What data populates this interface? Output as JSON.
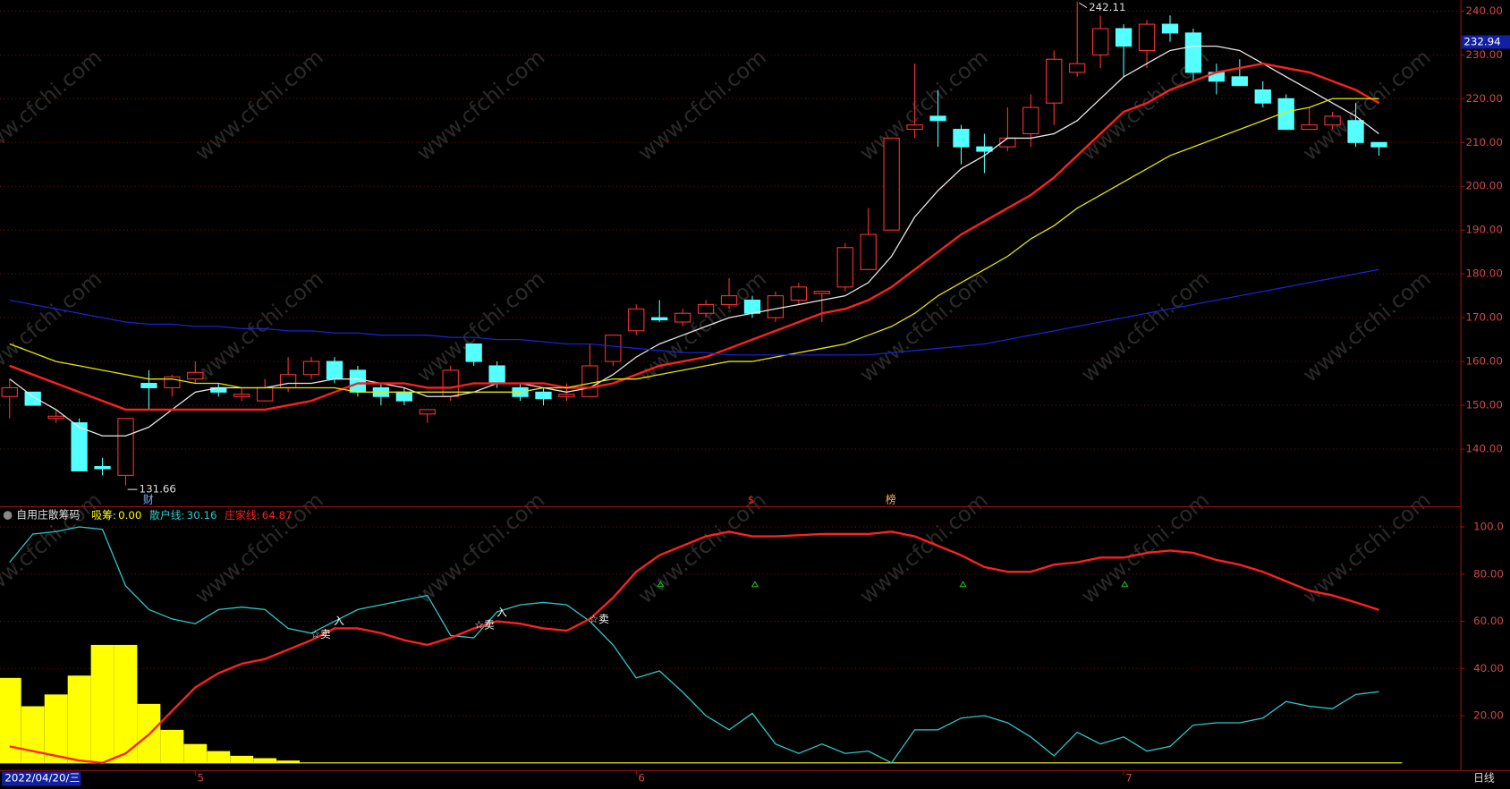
{
  "watermark": "www.cfchi.com",
  "chart_data": [
    {
      "type": "candlestick",
      "open": [
        152,
        153,
        147,
        146,
        136,
        134,
        155,
        154,
        156,
        154,
        152,
        151,
        154,
        157,
        160,
        158,
        154,
        153,
        148,
        152,
        164,
        159,
        154,
        153,
        152,
        152,
        160,
        167,
        170,
        169,
        171,
        173,
        174,
        170,
        174,
        175.5,
        177,
        181,
        190,
        213,
        216,
        213,
        209,
        209,
        212,
        219,
        226,
        230,
        236,
        231,
        237,
        235,
        226,
        225,
        222,
        220,
        213,
        214,
        215,
        210
      ],
      "high": [
        156,
        153,
        149,
        147,
        138,
        147,
        158,
        157,
        160,
        155,
        154,
        156,
        161,
        161,
        161,
        159,
        155,
        154,
        149,
        159,
        164,
        160,
        155,
        154,
        155,
        164,
        166,
        173,
        174,
        172,
        174,
        179,
        175,
        176,
        178,
        176,
        187,
        195,
        211,
        228,
        222,
        214,
        212,
        218,
        221,
        231,
        242.11,
        239,
        237,
        238,
        239,
        236,
        228,
        229,
        224,
        221,
        218,
        217,
        219,
        210
      ],
      "low": [
        147,
        150,
        146,
        135,
        134,
        131.66,
        149,
        152,
        155,
        152,
        151,
        151,
        153,
        156,
        155,
        152,
        150,
        150,
        146,
        151,
        159,
        154,
        151,
        150,
        151,
        152,
        159,
        166,
        169,
        168,
        170,
        172,
        170,
        169,
        173,
        169,
        176,
        181,
        190,
        211,
        209,
        205,
        203,
        208,
        209,
        214,
        225,
        227,
        225,
        227,
        233,
        224,
        221,
        223,
        218,
        213,
        213,
        213,
        209,
        207
      ],
      "close": [
        154,
        150,
        147.5,
        135,
        135.5,
        147,
        154,
        156.5,
        157.5,
        153,
        152.5,
        154,
        157,
        160,
        156,
        153,
        152,
        151,
        149,
        158,
        160,
        155,
        152,
        151.5,
        152.5,
        159,
        166,
        172,
        169.5,
        171,
        173,
        175,
        171,
        175,
        177,
        176,
        186,
        189,
        211,
        214,
        215,
        209,
        208,
        211,
        218,
        229,
        228,
        236,
        232,
        237,
        235,
        226,
        224,
        223,
        219,
        213,
        214,
        216,
        210,
        209
      ],
      "up_color": "#ff3232",
      "down_color": "#54ffff",
      "series": [
        {
          "color": "#e8e8e8",
          "values": [
            156,
            152,
            149,
            145,
            143,
            143,
            145,
            149,
            153,
            154,
            154,
            154,
            155,
            155,
            156,
            156,
            155,
            154,
            152,
            152,
            153,
            155,
            155,
            154,
            153,
            154,
            157,
            161,
            164,
            166,
            168,
            170,
            171,
            172,
            173,
            174,
            175,
            178,
            184,
            193,
            199,
            204,
            207,
            211,
            211,
            212,
            215,
            220,
            225,
            228,
            231,
            232,
            232,
            231,
            228,
            225,
            222,
            219,
            216,
            212
          ]
        },
        {
          "color": "#ff2020",
          "values": [
            159,
            157,
            155,
            153,
            151,
            149,
            149,
            149,
            149,
            149,
            149,
            149,
            150,
            151,
            153,
            155,
            155,
            155,
            154,
            154,
            155,
            155,
            155,
            155,
            154,
            154,
            155,
            157,
            159,
            160,
            161,
            163,
            165,
            167,
            169,
            171,
            172,
            174,
            177,
            181,
            185,
            189,
            192,
            195,
            198,
            202,
            207,
            212,
            217,
            219,
            222,
            224,
            226,
            227,
            228,
            227,
            226,
            224,
            222,
            219
          ]
        },
        {
          "color": "#e6e600",
          "values": [
            164,
            162,
            160,
            159,
            158,
            157,
            156,
            156,
            155,
            155,
            154,
            154,
            154,
            154,
            154,
            153,
            153,
            153,
            153,
            153,
            153,
            153,
            153,
            154,
            154,
            155,
            156,
            156,
            157,
            158,
            159,
            160,
            160,
            161,
            162,
            163,
            164,
            166,
            168,
            171,
            175,
            178,
            181,
            184,
            188,
            191,
            195,
            198,
            201,
            204,
            207,
            209,
            211,
            213,
            215,
            217,
            218,
            220,
            220,
            220
          ]
        },
        {
          "color": "#1a22d0",
          "values": [
            174,
            173,
            172,
            171,
            170,
            169,
            168.5,
            168.5,
            168,
            168,
            167.5,
            167.5,
            167,
            167,
            166.5,
            166.5,
            166,
            166,
            166,
            165.5,
            165.5,
            165,
            165,
            164.5,
            164,
            164,
            163.5,
            163,
            162.5,
            162,
            162,
            161.5,
            161.5,
            161.5,
            161.5,
            161.5,
            161.5,
            161.5,
            162,
            162.5,
            163,
            163.5,
            164,
            165,
            166,
            167,
            168,
            169,
            170,
            171,
            172,
            173,
            174,
            175,
            176,
            177,
            178,
            179,
            180,
            181
          ]
        }
      ],
      "ylim": [
        127.5,
        242.5
      ],
      "yticks": [
        {
          "value": 140,
          "label": "140.00"
        },
        {
          "value": 150,
          "label": "150.00"
        },
        {
          "value": 160,
          "label": "160.00"
        },
        {
          "value": 170,
          "label": "170.00"
        },
        {
          "value": 180,
          "label": "180.00"
        },
        {
          "value": 190,
          "label": "190.00"
        },
        {
          "value": 200,
          "label": "200.00"
        },
        {
          "value": 210,
          "label": "210.00"
        },
        {
          "value": 220,
          "label": "220.00"
        },
        {
          "value": 230,
          "label": "230.00"
        },
        {
          "value": 240,
          "label": "240.00"
        }
      ],
      "grid": true,
      "cursor_price": 232.94,
      "markers": [
        "财",
        "$",
        "榜"
      ]
    },
    {
      "type": "indicator",
      "title": "自用庄散筹码",
      "categories": [
        null,
        null,
        null,
        null,
        null,
        null,
        null,
        null,
        "5",
        null,
        null,
        null,
        null,
        null,
        null,
        null,
        null,
        null,
        null,
        null,
        null,
        null,
        null,
        null,
        null,
        null,
        null,
        "6",
        null,
        null,
        null,
        null,
        null,
        null,
        null,
        null,
        null,
        null,
        null,
        null,
        null,
        null,
        null,
        null,
        null,
        null,
        null,
        null,
        "7",
        null,
        null,
        null,
        null,
        null,
        null,
        null,
        null,
        null,
        null,
        null
      ],
      "series": [
        {
          "name": "吸筹:",
          "type": "bar",
          "color": "#ffff00",
          "latest_label": "0.00",
          "values": [
            36,
            24,
            29,
            37,
            50,
            50,
            25,
            14,
            8,
            5,
            3,
            2,
            1,
            0,
            0,
            0,
            0,
            0,
            0,
            0,
            0,
            0,
            0,
            0,
            0,
            0,
            0,
            0,
            0,
            0,
            0,
            0,
            0,
            0,
            0,
            0,
            0,
            0,
            0,
            0,
            0,
            0,
            0,
            0,
            0,
            0,
            0,
            0,
            0,
            0,
            0,
            0,
            0,
            0,
            0,
            0,
            0,
            0,
            0,
            0
          ]
        },
        {
          "name": "散户线:",
          "type": "line",
          "color": "#2ec8c8",
          "values": [
            85,
            97,
            98,
            100,
            99,
            75,
            65,
            61,
            59,
            65,
            66,
            65,
            57,
            55,
            60,
            65,
            67,
            69,
            71,
            54,
            53,
            64,
            67,
            68,
            67,
            60,
            50,
            36,
            39,
            30,
            20,
            14,
            21,
            8,
            4,
            8,
            4,
            5,
            0,
            14,
            14,
            19,
            20,
            17,
            11,
            3,
            13,
            8,
            11,
            5,
            7,
            16,
            17,
            17,
            19,
            26,
            24,
            23,
            29,
            30.16
          ]
        },
        {
          "name": "庄家线:",
          "type": "line",
          "color": "#ff2020",
          "values": [
            7,
            5,
            3,
            1,
            0,
            4,
            12,
            22,
            32,
            38,
            42,
            44,
            48,
            52,
            57,
            57,
            55,
            52,
            50,
            53,
            57,
            60,
            59,
            57,
            56,
            61,
            70,
            81,
            88,
            92,
            96,
            98,
            96,
            96,
            96.5,
            97,
            97,
            97,
            98,
            96,
            92,
            88,
            83,
            81,
            81,
            84,
            85,
            87,
            87,
            89,
            90,
            89,
            86,
            84,
            81,
            77,
            73,
            71,
            68,
            64.87
          ]
        }
      ],
      "ylim": [
        -3,
        108
      ],
      "yticks": [
        {
          "value": 20,
          "label": "20.00"
        },
        {
          "value": 40,
          "label": "40.00"
        },
        {
          "value": 60,
          "label": "60.00"
        },
        {
          "value": 80,
          "label": "80.00"
        },
        {
          "value": 100,
          "label": "100.0"
        }
      ],
      "grid": true,
      "annotations": [
        "☆卖",
        "入",
        "☆卖",
        "入",
        "☆卖"
      ],
      "cursor_date": "2022/04/20/三",
      "period": "日线"
    }
  ]
}
